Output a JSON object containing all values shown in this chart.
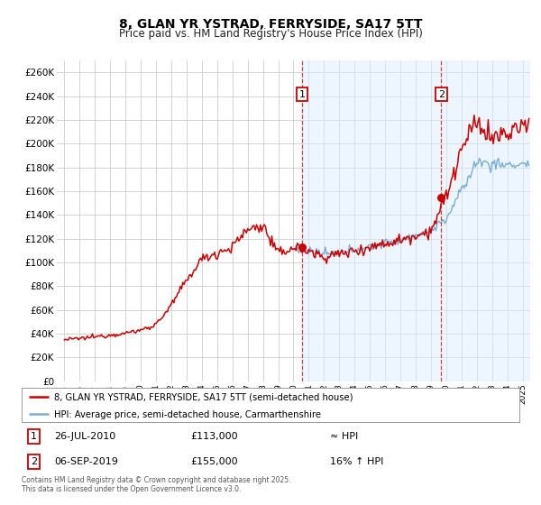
{
  "title": "8, GLAN YR YSTRAD, FERRYSIDE, SA17 5TT",
  "subtitle": "Price paid vs. HM Land Registry's House Price Index (HPI)",
  "hpi_label": "HPI: Average price, semi-detached house, Carmarthenshire",
  "property_label": "8, GLAN YR YSTRAD, FERRYSIDE, SA17 5TT (semi-detached house)",
  "hpi_color": "#7aaed6",
  "hpi_fill_color": "#ddeeff",
  "property_color": "#cc0000",
  "background_color": "#ffffff",
  "grid_color": "#cccccc",
  "annotation1": {
    "label": "1",
    "date_str": "26-JUL-2010",
    "price": 113000,
    "note": "≈ HPI",
    "x_year": 2010.56
  },
  "annotation2": {
    "label": "2",
    "date_str": "06-SEP-2019",
    "price": 155000,
    "note": "16% ↑ HPI",
    "x_year": 2019.68
  },
  "footer": "Contains HM Land Registry data © Crown copyright and database right 2025.\nThis data is licensed under the Open Government Licence v3.0.",
  "ylim": [
    0,
    270000
  ],
  "xlim_start": 1994.5,
  "xlim_end": 2025.5,
  "hpi_property_base": {
    "1995": 35000,
    "1996": 36000,
    "1997": 37500,
    "1998": 39000,
    "1999": 40500,
    "2000": 43000,
    "2001": 48000,
    "2002": 62000,
    "2003": 82000,
    "2004": 100000,
    "2005": 107000,
    "2006": 113000,
    "2007": 128000,
    "2008": 130000,
    "2009": 108000,
    "2010": 113000,
    "2011": 110000,
    "2012": 107000,
    "2013": 108000,
    "2014": 111000,
    "2015": 113000,
    "2016": 116000,
    "2017": 119000,
    "2018": 123000,
    "2019": 127000,
    "2020": 137000,
    "2021": 160000,
    "2022": 185000,
    "2023": 183000,
    "2024": 182000,
    "2025": 183000
  },
  "red_property_base": {
    "1995": 35000,
    "1996": 36000,
    "1997": 37500,
    "1998": 39000,
    "1999": 40500,
    "2000": 43000,
    "2001": 48000,
    "2002": 64000,
    "2003": 85000,
    "2004": 103000,
    "2005": 108000,
    "2006": 113000,
    "2007": 128000,
    "2008": 131000,
    "2009": 107000,
    "2010": 113000,
    "2011": 109000,
    "2012": 105000,
    "2013": 107000,
    "2014": 110000,
    "2015": 113000,
    "2016": 116000,
    "2017": 119000,
    "2018": 123000,
    "2019": 127000,
    "2020": 155000,
    "2021": 195000,
    "2022": 218000,
    "2023": 205000,
    "2024": 208000,
    "2025": 215000
  }
}
